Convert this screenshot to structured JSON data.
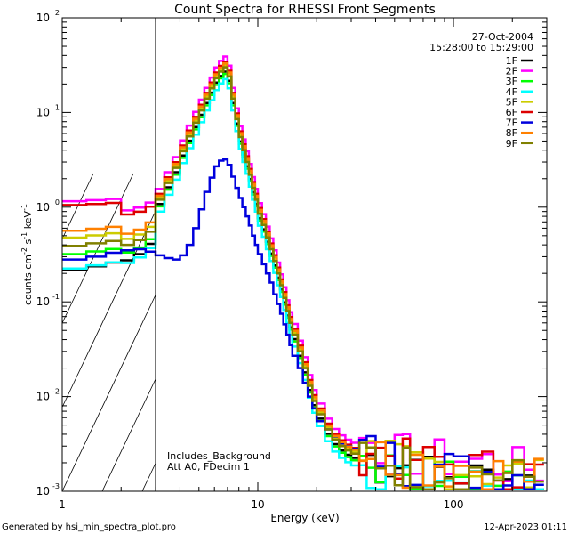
{
  "chart_data": {
    "type": "line",
    "title": "Count Spectra for RHESSI Front Segments",
    "xlabel": "Energy (keV)",
    "ylabel_parts": {
      "a": "counts cm",
      "b": "-2",
      "c": " s",
      "d": "-1",
      "e": " keV",
      "f": "-1"
    },
    "xscale": "log",
    "yscale": "log",
    "xlim": [
      1,
      300
    ],
    "ylim": [
      0.001,
      100
    ],
    "x_ticks": [
      {
        "value": 1,
        "label": "1"
      },
      {
        "value": 10,
        "label": "10"
      },
      {
        "value": 100,
        "label": "100"
      }
    ],
    "y_ticks": [
      {
        "value": 0.001,
        "base": "10",
        "exp": "-3"
      },
      {
        "value": 0.01,
        "base": "10",
        "exp": "-2"
      },
      {
        "value": 0.1,
        "base": "10",
        "exp": "-1"
      },
      {
        "value": 1,
        "base": "10",
        "exp": "0"
      },
      {
        "value": 10,
        "base": "10",
        "exp": "1"
      },
      {
        "value": 100,
        "base": "10",
        "exp": "2"
      }
    ],
    "excluded_region": {
      "x_min": 1,
      "x_max": 3,
      "style": "hatched"
    },
    "annotations": {
      "date": "27-Oct-2004",
      "time_range": "15:28:00 to 15:29:00",
      "background_note": "Includes_Background",
      "attenuator_note": "Att A0, FDecim 1"
    },
    "footer_left": "Generated by hsi_min_spectra_plot.pro",
    "footer_right": "12-Apr-2023 01:11",
    "legend_position": "top-right",
    "series": [
      {
        "name": "1F",
        "color": "#000000"
      },
      {
        "name": "2F",
        "color": "#ff00ff"
      },
      {
        "name": "3F",
        "color": "#00ff00"
      },
      {
        "name": "4F",
        "color": "#00ffff"
      },
      {
        "name": "5F",
        "color": "#cccc00"
      },
      {
        "name": "6F",
        "color": "#dd0000"
      },
      {
        "name": "7F",
        "color": "#0000dd"
      },
      {
        "name": "8F",
        "color": "#ff8000"
      },
      {
        "name": "9F",
        "color": "#808000"
      }
    ],
    "spectrum_model": {
      "energy_bins_keV": [
        1.0,
        1.33,
        1.67,
        2.0,
        2.33,
        2.67,
        3.0,
        3.33,
        3.67,
        4.0,
        4.33,
        4.67,
        5.0,
        5.33,
        5.67,
        6.0,
        6.33,
        6.67,
        7.0,
        7.33,
        7.67,
        8.0,
        8.33,
        8.67,
        9.0,
        9.33,
        9.67,
        10.0,
        10.5,
        11.0,
        11.5,
        12.0,
        12.5,
        13.0,
        13.5,
        14.0,
        14.5,
        15.0,
        16.0,
        17.0,
        18.0,
        19.0,
        20.0,
        22.0,
        24.0,
        26.0,
        28.0,
        30.0,
        33.0,
        36.0,
        40.0,
        45.0,
        50.0,
        55.0,
        60.0,
        70.0,
        80.0,
        90.0,
        100.0,
        120.0,
        140.0,
        160.0,
        180.0,
        200.0,
        230.0,
        260.0,
        290.0
      ],
      "thermal_counts": [
        0.3,
        0.35,
        0.4,
        0.5,
        0.6,
        0.8,
        1.2,
        1.8,
        2.6,
        3.9,
        5.6,
        7.8,
        10.5,
        14.0,
        18.0,
        23.0,
        27.0,
        30.0,
        24.0,
        14.0,
        8.5,
        5.5,
        4.0,
        3.0,
        2.2,
        1.6,
        1.2,
        0.85,
        0.65,
        0.48,
        0.36,
        0.27,
        0.2,
        0.15,
        0.11,
        0.08,
        0.06,
        0.045,
        0.03,
        0.02,
        0.013,
        0.009,
        0.0065,
        0.0045,
        0.0035,
        0.003,
        0.0027,
        0.0025,
        0.0023,
        0.0022,
        0.002,
        0.0019,
        0.0018,
        0.0018,
        0.0017,
        0.0016,
        0.0016,
        0.0015,
        0.0015,
        0.0014,
        0.0014,
        0.0013,
        0.0013,
        0.0013,
        0.0012,
        0.0012,
        0.0012
      ],
      "detector_7F_counts": [
        0.28,
        0.3,
        0.33,
        0.35,
        0.36,
        0.34,
        0.31,
        0.29,
        0.28,
        0.31,
        0.4,
        0.6,
        0.95,
        1.45,
        2.05,
        2.7,
        3.1,
        3.2,
        2.8,
        2.1,
        1.6,
        1.25,
        1.0,
        0.8,
        0.64,
        0.5,
        0.4,
        0.32,
        0.25,
        0.2,
        0.16,
        0.12,
        0.095,
        0.075,
        0.058,
        0.045,
        0.035,
        0.027,
        0.02,
        0.014,
        0.01,
        0.0075,
        0.0055,
        0.0045,
        0.0038,
        0.0032,
        0.003,
        0.0028,
        0.0026,
        0.0024,
        0.0022,
        0.0021,
        0.002,
        0.0019,
        0.0018,
        0.0017,
        0.0016,
        0.0016,
        0.0015,
        0.0015,
        0.0014,
        0.0014,
        0.0013,
        0.0013,
        0.0012,
        0.0012,
        0.0012
      ],
      "detector_scale": [
        0.9,
        1.3,
        0.85,
        0.75,
        1.05,
        1.15,
        1.0,
        1.1,
        1.0
      ],
      "low_energy_offsets": [
        0.05,
        0.6,
        0.12,
        0.07,
        0.2,
        0.55,
        0.0,
        0.25,
        0.15
      ]
    }
  }
}
